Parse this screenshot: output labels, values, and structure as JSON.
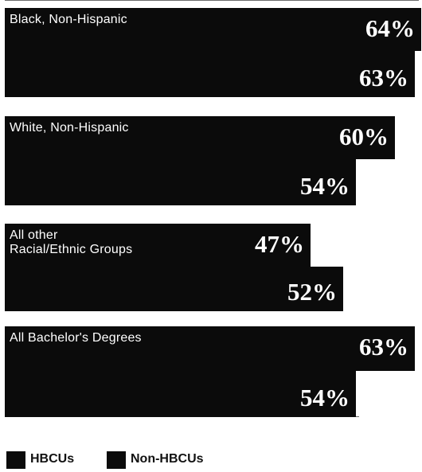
{
  "chart_data": {
    "type": "bar",
    "orientation": "horizontal",
    "categories": [
      [
        "Black, Non-Hispanic"
      ],
      [
        "White, Non-Hispanic"
      ],
      [
        "All other",
        "Racial/Ethnic Groups"
      ],
      [
        "All Bachelor's Degrees"
      ]
    ],
    "series": [
      {
        "name": "HBCUs",
        "values": [
          64,
          60,
          47,
          63
        ],
        "labels": [
          "64%",
          "60%",
          "47%",
          "63%"
        ]
      },
      {
        "name": "Non-HBCUs",
        "values": [
          63,
          54,
          52,
          54
        ],
        "labels": [
          "63%",
          "54%",
          "52%",
          "54%"
        ]
      }
    ],
    "xlim": [
      0,
      64
    ],
    "value_unit": "%",
    "grid": false,
    "axes_visible": false,
    "bar_color": "#0b0b0b",
    "text_color": "#ffffff",
    "legend_position": "bottom-left",
    "legend": [
      {
        "label": "HBCUs",
        "color": "#0b0b0b"
      },
      {
        "label": "Non-HBCUs",
        "color": "#0b0b0b"
      }
    ]
  }
}
